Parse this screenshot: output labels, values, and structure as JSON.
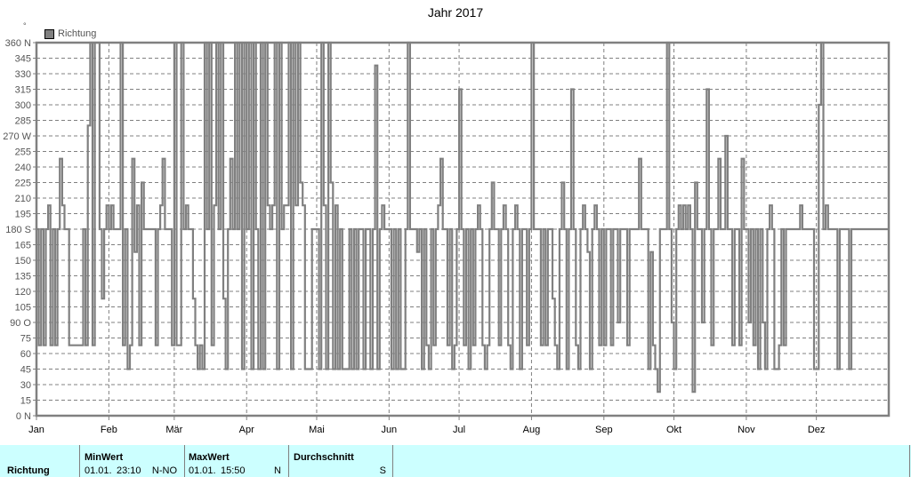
{
  "title": "Jahr 2017",
  "unit_symbol": "°",
  "legend": {
    "label": "Richtung",
    "color": "#808080"
  },
  "chart_data": {
    "type": "line",
    "title": "Jahr 2017",
    "series_name": "Richtung",
    "xlabel": "",
    "ylabel": "°",
    "ylim": [
      0,
      360
    ],
    "grid": true,
    "legend_position": "top-left",
    "y_ticks": [
      "0 N",
      "15",
      "30",
      "45",
      "60",
      "75",
      "90 O",
      "105",
      "120",
      "135",
      "150",
      "165",
      "180 S",
      "195",
      "210",
      "225",
      "240",
      "255",
      "270 W",
      "285",
      "300",
      "315",
      "330",
      "345",
      "360 N"
    ],
    "x_ticks": [
      "Jan",
      "Feb",
      "Mär",
      "Apr",
      "Mai",
      "Jun",
      "Jul",
      "Aug",
      "Sep",
      "Okt",
      "Nov",
      "Dez"
    ],
    "x_tick_days": [
      0,
      31,
      59,
      90,
      120,
      151,
      181,
      212,
      243,
      273,
      304,
      334
    ],
    "x_range_days": [
      0,
      365
    ],
    "points": [
      [
        0,
        180
      ],
      [
        1,
        68
      ],
      [
        2,
        180
      ],
      [
        3,
        68
      ],
      [
        4,
        180
      ],
      [
        5,
        203
      ],
      [
        6,
        68
      ],
      [
        7,
        180
      ],
      [
        8,
        68
      ],
      [
        9,
        180
      ],
      [
        10,
        248
      ],
      [
        11,
        203
      ],
      [
        12,
        180
      ],
      [
        13,
        180
      ],
      [
        14,
        68
      ],
      [
        16,
        68
      ],
      [
        18,
        68
      ],
      [
        20,
        180
      ],
      [
        21,
        68
      ],
      [
        22,
        280
      ],
      [
        23,
        360
      ],
      [
        24,
        68
      ],
      [
        25,
        360
      ],
      [
        27,
        180
      ],
      [
        28,
        113
      ],
      [
        29,
        180
      ],
      [
        30,
        203
      ],
      [
        31,
        180
      ],
      [
        32,
        203
      ],
      [
        33,
        180
      ],
      [
        35,
        180
      ],
      [
        36,
        360
      ],
      [
        37,
        68
      ],
      [
        38,
        180
      ],
      [
        39,
        45
      ],
      [
        40,
        68
      ],
      [
        41,
        248
      ],
      [
        42,
        158
      ],
      [
        43,
        203
      ],
      [
        44,
        68
      ],
      [
        45,
        225
      ],
      [
        46,
        180
      ],
      [
        48,
        180
      ],
      [
        50,
        180
      ],
      [
        51,
        68
      ],
      [
        52,
        180
      ],
      [
        53,
        203
      ],
      [
        54,
        248
      ],
      [
        55,
        180
      ],
      [
        57,
        180
      ],
      [
        58,
        68
      ],
      [
        59,
        360
      ],
      [
        60,
        68
      ],
      [
        62,
        360
      ],
      [
        63,
        180
      ],
      [
        64,
        203
      ],
      [
        65,
        180
      ],
      [
        66,
        180
      ],
      [
        67,
        113
      ],
      [
        68,
        68
      ],
      [
        69,
        45
      ],
      [
        70,
        68
      ],
      [
        71,
        45
      ],
      [
        72,
        360
      ],
      [
        73,
        180
      ],
      [
        74,
        360
      ],
      [
        75,
        68
      ],
      [
        76,
        203
      ],
      [
        77,
        360
      ],
      [
        78,
        180
      ],
      [
        79,
        360
      ],
      [
        80,
        113
      ],
      [
        81,
        45
      ],
      [
        82,
        180
      ],
      [
        83,
        248
      ],
      [
        84,
        180
      ],
      [
        85,
        360
      ],
      [
        86,
        180
      ],
      [
        87,
        360
      ],
      [
        88,
        45
      ],
      [
        89,
        360
      ],
      [
        90,
        180
      ],
      [
        91,
        360
      ],
      [
        92,
        45
      ],
      [
        93,
        360
      ],
      [
        94,
        180
      ],
      [
        95,
        45
      ],
      [
        96,
        360
      ],
      [
        97,
        45
      ],
      [
        98,
        360
      ],
      [
        99,
        203
      ],
      [
        100,
        180
      ],
      [
        101,
        203
      ],
      [
        102,
        360
      ],
      [
        103,
        45
      ],
      [
        104,
        360
      ],
      [
        105,
        180
      ],
      [
        106,
        203
      ],
      [
        107,
        203
      ],
      [
        108,
        360
      ],
      [
        109,
        45
      ],
      [
        110,
        360
      ],
      [
        111,
        203
      ],
      [
        112,
        360
      ],
      [
        113,
        225
      ],
      [
        114,
        203
      ],
      [
        115,
        45
      ],
      [
        116,
        45
      ],
      [
        118,
        180
      ],
      [
        119,
        180
      ],
      [
        120,
        180
      ],
      [
        121,
        45
      ],
      [
        122,
        360
      ],
      [
        123,
        203
      ],
      [
        124,
        45
      ],
      [
        125,
        360
      ],
      [
        126,
        225
      ],
      [
        127,
        45
      ],
      [
        128,
        203
      ],
      [
        129,
        45
      ],
      [
        130,
        180
      ],
      [
        131,
        45
      ],
      [
        132,
        45
      ],
      [
        134,
        180
      ],
      [
        135,
        45
      ],
      [
        136,
        180
      ],
      [
        137,
        45
      ],
      [
        138,
        180
      ],
      [
        140,
        45
      ],
      [
        141,
        180
      ],
      [
        143,
        45
      ],
      [
        144,
        180
      ],
      [
        145,
        338
      ],
      [
        146,
        45
      ],
      [
        147,
        180
      ],
      [
        148,
        203
      ],
      [
        149,
        180
      ],
      [
        150,
        180
      ],
      [
        152,
        45
      ],
      [
        153,
        180
      ],
      [
        154,
        45
      ],
      [
        155,
        180
      ],
      [
        156,
        45
      ],
      [
        158,
        180
      ],
      [
        159,
        360
      ],
      [
        160,
        180
      ],
      [
        162,
        180
      ],
      [
        163,
        158
      ],
      [
        164,
        180
      ],
      [
        165,
        45
      ],
      [
        166,
        180
      ],
      [
        167,
        68
      ],
      [
        168,
        45
      ],
      [
        169,
        180
      ],
      [
        170,
        68
      ],
      [
        171,
        180
      ],
      [
        172,
        203
      ],
      [
        173,
        248
      ],
      [
        174,
        180
      ],
      [
        175,
        180
      ],
      [
        176,
        68
      ],
      [
        177,
        180
      ],
      [
        178,
        45
      ],
      [
        179,
        68
      ],
      [
        180,
        180
      ],
      [
        181,
        315
      ],
      [
        182,
        180
      ],
      [
        183,
        68
      ],
      [
        184,
        180
      ],
      [
        185,
        45
      ],
      [
        186,
        180
      ],
      [
        187,
        68
      ],
      [
        188,
        180
      ],
      [
        189,
        203
      ],
      [
        190,
        180
      ],
      [
        191,
        68
      ],
      [
        192,
        45
      ],
      [
        193,
        68
      ],
      [
        194,
        180
      ],
      [
        195,
        225
      ],
      [
        196,
        180
      ],
      [
        197,
        180
      ],
      [
        198,
        68
      ],
      [
        199,
        180
      ],
      [
        200,
        203
      ],
      [
        201,
        180
      ],
      [
        202,
        68
      ],
      [
        203,
        45
      ],
      [
        204,
        180
      ],
      [
        205,
        203
      ],
      [
        206,
        180
      ],
      [
        207,
        45
      ],
      [
        208,
        180
      ],
      [
        209,
        180
      ],
      [
        210,
        68
      ],
      [
        211,
        180
      ],
      [
        212,
        360
      ],
      [
        213,
        180
      ],
      [
        214,
        180
      ],
      [
        215,
        180
      ],
      [
        216,
        68
      ],
      [
        217,
        180
      ],
      [
        218,
        68
      ],
      [
        219,
        180
      ],
      [
        220,
        180
      ],
      [
        221,
        113
      ],
      [
        222,
        68
      ],
      [
        223,
        45
      ],
      [
        224,
        180
      ],
      [
        225,
        225
      ],
      [
        226,
        180
      ],
      [
        227,
        45
      ],
      [
        228,
        180
      ],
      [
        229,
        315
      ],
      [
        230,
        180
      ],
      [
        231,
        68
      ],
      [
        232,
        45
      ],
      [
        233,
        180
      ],
      [
        234,
        203
      ],
      [
        235,
        180
      ],
      [
        236,
        158
      ],
      [
        237,
        45
      ],
      [
        238,
        180
      ],
      [
        239,
        203
      ],
      [
        240,
        180
      ],
      [
        241,
        68
      ],
      [
        242,
        180
      ],
      [
        243,
        68
      ],
      [
        244,
        180
      ],
      [
        245,
        180
      ],
      [
        246,
        68
      ],
      [
        247,
        180
      ],
      [
        248,
        180
      ],
      [
        249,
        90
      ],
      [
        250,
        180
      ],
      [
        252,
        180
      ],
      [
        253,
        68
      ],
      [
        254,
        180
      ],
      [
        255,
        180
      ],
      [
        256,
        180
      ],
      [
        257,
        180
      ],
      [
        258,
        248
      ],
      [
        259,
        180
      ],
      [
        260,
        180
      ],
      [
        261,
        180
      ],
      [
        262,
        45
      ],
      [
        263,
        158
      ],
      [
        264,
        68
      ],
      [
        265,
        45
      ],
      [
        266,
        23
      ],
      [
        267,
        180
      ],
      [
        268,
        180
      ],
      [
        270,
        360
      ],
      [
        271,
        180
      ],
      [
        272,
        90
      ],
      [
        273,
        45
      ],
      [
        274,
        180
      ],
      [
        275,
        203
      ],
      [
        276,
        180
      ],
      [
        277,
        203
      ],
      [
        278,
        180
      ],
      [
        279,
        203
      ],
      [
        280,
        180
      ],
      [
        281,
        23
      ],
      [
        282,
        225
      ],
      [
        283,
        180
      ],
      [
        284,
        180
      ],
      [
        285,
        90
      ],
      [
        286,
        180
      ],
      [
        287,
        315
      ],
      [
        288,
        180
      ],
      [
        289,
        68
      ],
      [
        290,
        180
      ],
      [
        291,
        180
      ],
      [
        292,
        248
      ],
      [
        293,
        180
      ],
      [
        294,
        180
      ],
      [
        295,
        270
      ],
      [
        296,
        180
      ],
      [
        297,
        180
      ],
      [
        298,
        68
      ],
      [
        299,
        180
      ],
      [
        300,
        180
      ],
      [
        301,
        68
      ],
      [
        302,
        248
      ],
      [
        303,
        180
      ],
      [
        304,
        180
      ],
      [
        305,
        90
      ],
      [
        306,
        180
      ],
      [
        307,
        68
      ],
      [
        308,
        180
      ],
      [
        309,
        45
      ],
      [
        310,
        180
      ],
      [
        311,
        90
      ],
      [
        312,
        45
      ],
      [
        313,
        180
      ],
      [
        314,
        203
      ],
      [
        315,
        180
      ],
      [
        316,
        45
      ],
      [
        317,
        45
      ],
      [
        318,
        68
      ],
      [
        319,
        180
      ],
      [
        320,
        68
      ],
      [
        321,
        180
      ],
      [
        322,
        180
      ],
      [
        325,
        180
      ],
      [
        326,
        180
      ],
      [
        327,
        203
      ],
      [
        328,
        180
      ],
      [
        331,
        180
      ],
      [
        332,
        180
      ],
      [
        333,
        45
      ],
      [
        334,
        45
      ],
      [
        335,
        300
      ],
      [
        336,
        360
      ],
      [
        337,
        180
      ],
      [
        338,
        203
      ],
      [
        339,
        180
      ],
      [
        341,
        180
      ],
      [
        342,
        180
      ],
      [
        343,
        45
      ],
      [
        344,
        180
      ],
      [
        345,
        180
      ],
      [
        346,
        180
      ],
      [
        347,
        180
      ],
      [
        348,
        45
      ],
      [
        349,
        180
      ],
      [
        350,
        180
      ],
      [
        351,
        180
      ],
      [
        352,
        180
      ],
      [
        365,
        180
      ]
    ]
  },
  "stats": {
    "row_label": "Richtung",
    "columns": [
      {
        "header": "MinWert",
        "date": "01.01.",
        "time": "23:10",
        "value": "N-NO"
      },
      {
        "header": "MaxWert",
        "date": "01.01.",
        "time": "15:50",
        "value": "N"
      },
      {
        "header": "Durchschnitt",
        "date": "",
        "time": "",
        "value": "S"
      }
    ]
  }
}
